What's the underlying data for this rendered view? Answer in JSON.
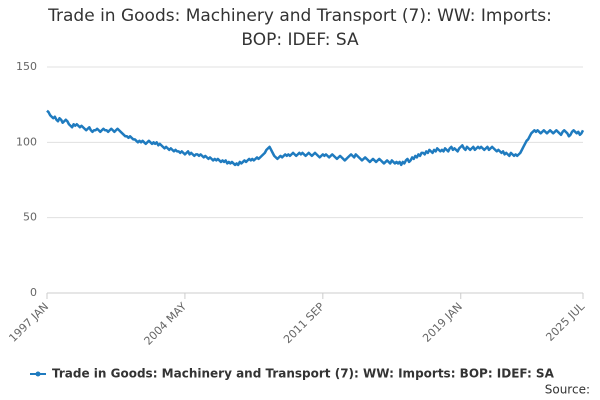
{
  "chart_data": {
    "type": "line",
    "title": "Trade in Goods: Machinery and Transport (7): WW: Imports: BOP: IDEF: SA",
    "source_label": "Source:",
    "ylim": [
      0,
      150
    ],
    "yticks": [
      0,
      50,
      100,
      150
    ],
    "grid": true,
    "legend": "bottom",
    "xticks": [
      "1997 JAN",
      "2004 MAY",
      "2011 SEP",
      "2019 JAN",
      "2025 JUL"
    ],
    "x": [
      "1997 JAN",
      "1997 FEB",
      "1997 MAR",
      "1997 APR",
      "1997 MAY",
      "1997 JUN",
      "1997 JUL",
      "1997 AUG",
      "1997 SEP",
      "1997 OCT",
      "1997 NOV",
      "1997 DEC",
      "1998 JAN",
      "1998 FEB",
      "1998 MAR",
      "1998 APR",
      "1998 MAY",
      "1998 JUN",
      "1998 JUL",
      "1998 AUG",
      "1998 SEP",
      "1998 OCT",
      "1998 NOV",
      "1998 DEC",
      "1999 JAN",
      "1999 FEB",
      "1999 MAR",
      "1999 APR",
      "1999 MAY",
      "1999 JUN",
      "1999 JUL",
      "1999 AUG",
      "1999 SEP",
      "1999 OCT",
      "1999 NOV",
      "1999 DEC",
      "2000 JAN",
      "2000 FEB",
      "2000 MAR",
      "2000 APR",
      "2000 MAY",
      "2000 JUN",
      "2000 JUL",
      "2000 AUG",
      "2000 SEP",
      "2000 OCT",
      "2000 NOV",
      "2000 DEC",
      "2001 JAN",
      "2001 FEB",
      "2001 MAR",
      "2001 APR",
      "2001 MAY",
      "2001 JUN",
      "2001 JUL",
      "2001 AUG",
      "2001 SEP",
      "2001 OCT",
      "2001 NOV",
      "2001 DEC",
      "2002 JAN",
      "2002 FEB",
      "2002 MAR",
      "2002 APR",
      "2002 MAY",
      "2002 JUN",
      "2002 JUL",
      "2002 AUG",
      "2002 SEP",
      "2002 OCT",
      "2002 NOV",
      "2002 DEC",
      "2003 JAN",
      "2003 FEB",
      "2003 MAR",
      "2003 APR",
      "2003 MAY",
      "2003 JUN",
      "2003 JUL",
      "2003 AUG",
      "2003 SEP",
      "2003 OCT",
      "2003 NOV",
      "2003 DEC",
      "2004 JAN",
      "2004 FEB",
      "2004 MAR",
      "2004 APR",
      "2004 MAY",
      "2004 JUN",
      "2004 JUL",
      "2004 AUG",
      "2004 SEP",
      "2004 OCT",
      "2004 NOV",
      "2004 DEC",
      "2005 JAN",
      "2005 FEB",
      "2005 MAR",
      "2005 APR",
      "2005 MAY",
      "2005 JUN",
      "2005 JUL",
      "2005 AUG",
      "2005 SEP",
      "2005 OCT",
      "2005 NOV",
      "2005 DEC",
      "2006 JAN",
      "2006 FEB",
      "2006 MAR",
      "2006 APR",
      "2006 MAY",
      "2006 JUN",
      "2006 JUL",
      "2006 AUG",
      "2006 SEP",
      "2006 OCT",
      "2006 NOV",
      "2006 DEC",
      "2007 JAN",
      "2007 FEB",
      "2007 MAR",
      "2007 APR",
      "2007 MAY",
      "2007 JUN",
      "2007 JUL",
      "2007 AUG",
      "2007 SEP",
      "2007 OCT",
      "2007 NOV",
      "2007 DEC",
      "2008 JAN",
      "2008 FEB",
      "2008 MAR",
      "2008 APR",
      "2008 MAY",
      "2008 JUN",
      "2008 JUL",
      "2008 AUG",
      "2008 SEP",
      "2008 OCT",
      "2008 NOV",
      "2008 DEC",
      "2009 JAN",
      "2009 FEB",
      "2009 MAR",
      "2009 APR",
      "2009 MAY",
      "2009 JUN",
      "2009 JUL",
      "2009 AUG",
      "2009 SEP",
      "2009 OCT",
      "2009 NOV",
      "2009 DEC",
      "2010 JAN",
      "2010 FEB",
      "2010 MAR",
      "2010 APR",
      "2010 MAY",
      "2010 JUN",
      "2010 JUL",
      "2010 AUG",
      "2010 SEP",
      "2010 OCT",
      "2010 NOV",
      "2010 DEC",
      "2011 JAN",
      "2011 FEB",
      "2011 MAR",
      "2011 APR",
      "2011 MAY",
      "2011 JUN",
      "2011 JUL",
      "2011 AUG",
      "2011 SEP",
      "2011 OCT",
      "2011 NOV",
      "2011 DEC",
      "2012 JAN",
      "2012 FEB",
      "2012 MAR",
      "2012 APR",
      "2012 MAY",
      "2012 JUN",
      "2012 JUL",
      "2012 AUG",
      "2012 SEP",
      "2012 OCT",
      "2012 NOV",
      "2012 DEC",
      "2013 JAN",
      "2013 FEB",
      "2013 MAR",
      "2013 APR",
      "2013 MAY",
      "2013 JUN",
      "2013 JUL",
      "2013 AUG",
      "2013 SEP",
      "2013 OCT",
      "2013 NOV",
      "2013 DEC",
      "2014 JAN",
      "2014 FEB",
      "2014 MAR",
      "2014 APR",
      "2014 MAY",
      "2014 JUN",
      "2014 JUL",
      "2014 AUG",
      "2014 SEP",
      "2014 OCT",
      "2014 NOV",
      "2014 DEC",
      "2015 JAN",
      "2015 FEB",
      "2015 MAR",
      "2015 APR",
      "2015 MAY",
      "2015 JUN",
      "2015 JUL",
      "2015 AUG",
      "2015 SEP",
      "2015 OCT",
      "2015 NOV",
      "2015 DEC",
      "2016 JAN",
      "2016 FEB",
      "2016 MAR",
      "2016 APR",
      "2016 MAY",
      "2016 JUN",
      "2016 JUL",
      "2016 AUG",
      "2016 SEP",
      "2016 OCT",
      "2016 NOV",
      "2016 DEC",
      "2017 JAN",
      "2017 FEB",
      "2017 MAR",
      "2017 APR",
      "2017 MAY",
      "2017 JUN",
      "2017 JUL",
      "2017 AUG",
      "2017 SEP",
      "2017 OCT",
      "2017 NOV",
      "2017 DEC",
      "2018 JAN",
      "2018 FEB",
      "2018 MAR",
      "2018 APR",
      "2018 MAY",
      "2018 JUN",
      "2018 JUL",
      "2018 AUG",
      "2018 SEP",
      "2018 OCT",
      "2018 NOV",
      "2018 DEC",
      "2019 JAN",
      "2019 FEB",
      "2019 MAR",
      "2019 APR",
      "2019 MAY",
      "2019 JUN",
      "2019 JUL",
      "2019 AUG",
      "2019 SEP",
      "2019 OCT",
      "2019 NOV",
      "2019 DEC",
      "2020 JAN",
      "2020 FEB",
      "2020 MAR",
      "2020 APR",
      "2020 MAY",
      "2020 JUN",
      "2020 JUL",
      "2020 AUG",
      "2020 SEP",
      "2020 OCT",
      "2020 NOV",
      "2020 DEC",
      "2021 JAN",
      "2021 FEB",
      "2021 MAR",
      "2021 APR",
      "2021 MAY",
      "2021 JUN",
      "2021 JUL",
      "2021 AUG",
      "2021 SEP",
      "2021 OCT",
      "2021 NOV",
      "2021 DEC",
      "2022 JAN",
      "2022 FEB",
      "2022 MAR",
      "2022 APR",
      "2022 MAY",
      "2022 JUN",
      "2022 JUL",
      "2022 AUG",
      "2022 SEP",
      "2022 OCT",
      "2022 NOV",
      "2022 DEC",
      "2023 JAN",
      "2023 FEB",
      "2023 MAR",
      "2023 APR",
      "2023 MAY",
      "2023 JUN",
      "2023 JUL",
      "2023 AUG",
      "2023 SEP",
      "2023 OCT",
      "2023 NOV",
      "2023 DEC",
      "2024 JAN",
      "2024 FEB",
      "2024 MAR",
      "2024 APR",
      "2024 MAY",
      "2024 JUN",
      "2024 JUL",
      "2024 AUG",
      "2024 SEP",
      "2024 OCT",
      "2024 NOV",
      "2024 DEC",
      "2025 JAN",
      "2025 FEB",
      "2025 MAR",
      "2025 APR",
      "2025 MAY",
      "2025 JUN",
      "2025 JUL"
    ],
    "series": [
      {
        "name": "Trade in Goods: Machinery and Transport (7): WW: Imports: BOP: IDEF: SA",
        "color": "#1f7bbf",
        "values": [
          121,
          120,
          118,
          117,
          116,
          117,
          115,
          114,
          116,
          115,
          113,
          114,
          115,
          114,
          112,
          111,
          110,
          112,
          111,
          112,
          111,
          110,
          111,
          110,
          109,
          108,
          109,
          110,
          108,
          107,
          108,
          108,
          109,
          108,
          107,
          108,
          109,
          108,
          108,
          107,
          108,
          109,
          108,
          107,
          108,
          109,
          108,
          107,
          106,
          105,
          104,
          104,
          103,
          104,
          103,
          102,
          102,
          101,
          100,
          101,
          100,
          101,
          100,
          99,
          100,
          101,
          100,
          99,
          100,
          99,
          100,
          98,
          99,
          98,
          97,
          96,
          97,
          96,
          95,
          96,
          95,
          94,
          95,
          94,
          94,
          93,
          94,
          93,
          92,
          93,
          94,
          92,
          93,
          92,
          91,
          92,
          92,
          91,
          92,
          91,
          90,
          91,
          90,
          89,
          90,
          89,
          88,
          89,
          88,
          89,
          88,
          87,
          88,
          87,
          88,
          86,
          87,
          86,
          87,
          86,
          85,
          86,
          85,
          87,
          86,
          87,
          88,
          87,
          88,
          89,
          88,
          89,
          88,
          89,
          90,
          89,
          90,
          91,
          92,
          93,
          95,
          96,
          97,
          95,
          93,
          91,
          90,
          89,
          90,
          91,
          90,
          91,
          92,
          91,
          92,
          91,
          92,
          93,
          92,
          91,
          92,
          93,
          92,
          93,
          92,
          91,
          92,
          93,
          92,
          91,
          92,
          93,
          92,
          91,
          90,
          91,
          92,
          91,
          92,
          91,
          90,
          91,
          92,
          91,
          90,
          89,
          90,
          91,
          90,
          89,
          88,
          89,
          90,
          91,
          92,
          91,
          90,
          92,
          91,
          90,
          89,
          88,
          89,
          90,
          89,
          88,
          87,
          88,
          89,
          88,
          87,
          88,
          89,
          88,
          87,
          86,
          87,
          88,
          87,
          86,
          88,
          87,
          86,
          87,
          86,
          87,
          85,
          87,
          86,
          88,
          89,
          87,
          88,
          90,
          89,
          91,
          90,
          92,
          91,
          93,
          93,
          92,
          94,
          93,
          95,
          94,
          93,
          95,
          94,
          96,
          95,
          94,
          95,
          94,
          96,
          95,
          94,
          96,
          97,
          95,
          96,
          95,
          94,
          96,
          97,
          98,
          96,
          95,
          97,
          96,
          95,
          96,
          97,
          95,
          96,
          97,
          96,
          97,
          96,
          95,
          96,
          97,
          95,
          96,
          97,
          96,
          95,
          94,
          95,
          94,
          93,
          94,
          92,
          93,
          92,
          91,
          93,
          92,
          91,
          92,
          91,
          92,
          93,
          95,
          97,
          99,
          101,
          102,
          104,
          106,
          107,
          108,
          107,
          108,
          107,
          106,
          107,
          108,
          107,
          106,
          107,
          108,
          107,
          106,
          107,
          108,
          107,
          106,
          105,
          107,
          108,
          107,
          106,
          104,
          105,
          107,
          108,
          107,
          106,
          107,
          105,
          106,
          108
        ]
      }
    ]
  }
}
